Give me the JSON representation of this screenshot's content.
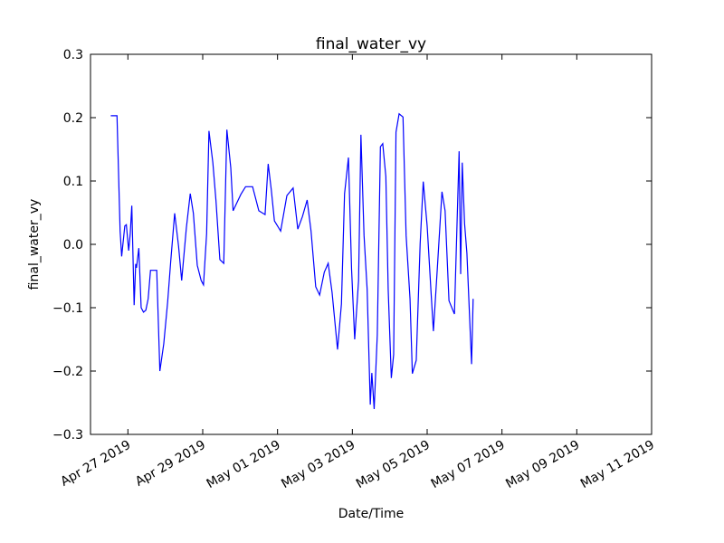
{
  "chart_data": {
    "type": "line",
    "title": "final_water_vy",
    "x_label": "Date/Time",
    "y_label": "final_water_vy",
    "color": "#0000ff",
    "x": [
      "2019-04-26T13:00",
      "2019-04-26T17:00",
      "2019-04-26T19:00",
      "2019-04-26T20:00",
      "2019-04-26T22:00",
      "2019-04-26T23:00",
      "2019-04-27T00:30",
      "2019-04-27T01:30",
      "2019-04-27T02:30",
      "2019-04-27T04:00",
      "2019-04-27T05:00",
      "2019-04-27T05:30",
      "2019-04-27T07:00",
      "2019-04-27T08:30",
      "2019-04-27T10:00",
      "2019-04-27T11:30",
      "2019-04-27T13:00",
      "2019-04-27T14:30",
      "2019-04-27T16:00",
      "2019-04-27T18:30",
      "2019-04-27T20:30",
      "2019-04-27T23:00",
      "2019-04-28T01:30",
      "2019-04-28T03:30",
      "2019-04-28T06:00",
      "2019-04-28T08:30",
      "2019-04-28T10:30",
      "2019-04-28T13:30",
      "2019-04-28T16:00",
      "2019-04-28T18:00",
      "2019-04-28T20:30",
      "2019-04-28T23:00",
      "2019-04-29T00:30",
      "2019-04-29T02:30",
      "2019-04-29T04:00",
      "2019-04-29T06:30",
      "2019-04-29T08:30",
      "2019-04-29T11:00",
      "2019-04-29T13:30",
      "2019-04-29T15:30",
      "2019-04-29T18:00",
      "2019-04-29T19:30",
      "2019-04-29T22:00",
      "2019-04-30T00:30",
      "2019-04-30T03:30",
      "2019-04-30T08:00",
      "2019-04-30T12:00",
      "2019-04-30T16:00",
      "2019-04-30T18:00",
      "2019-04-30T20:00",
      "2019-04-30T22:00",
      "2019-05-01T02:00",
      "2019-05-01T06:00",
      "2019-05-01T10:00",
      "2019-05-01T13:00",
      "2019-05-01T16:00",
      "2019-05-01T19:00",
      "2019-05-01T21:30",
      "2019-05-02T00:30",
      "2019-05-02T03:00",
      "2019-05-02T06:00",
      "2019-05-02T08:30",
      "2019-05-02T11:00",
      "2019-05-02T14:30",
      "2019-05-02T17:00",
      "2019-05-02T19:00",
      "2019-05-02T21:30",
      "2019-05-02T23:30",
      "2019-05-03T01:30",
      "2019-05-03T04:00",
      "2019-05-03T05:30",
      "2019-05-03T07:30",
      "2019-05-03T09:30",
      "2019-05-03T11:30",
      "2019-05-03T12:30",
      "2019-05-03T14:00",
      "2019-05-03T16:00",
      "2019-05-03T18:00",
      "2019-05-03T19:30",
      "2019-05-03T21:30",
      "2019-05-03T23:00",
      "2019-05-04T01:00",
      "2019-05-04T02:30",
      "2019-05-04T04:00",
      "2019-05-04T06:00",
      "2019-05-04T08:30",
      "2019-05-04T10:30",
      "2019-05-04T13:00",
      "2019-05-04T14:30",
      "2019-05-04T17:00",
      "2019-05-04T19:30",
      "2019-05-04T21:30",
      "2019-05-05T00:00",
      "2019-05-05T02:30",
      "2019-05-05T04:00",
      "2019-05-05T06:30",
      "2019-05-05T09:30",
      "2019-05-05T11:30",
      "2019-05-05T14:00",
      "2019-05-05T17:30",
      "2019-05-05T20:30",
      "2019-05-05T21:30",
      "2019-05-05T22:30",
      "2019-05-06T00:00",
      "2019-05-06T01:30",
      "2019-05-06T04:30",
      "2019-05-06T05:30"
    ],
    "values": [
      0.203,
      0.203,
      0.021,
      -0.019,
      0.029,
      0.031,
      -0.01,
      0.017,
      0.061,
      -0.096,
      -0.031,
      -0.037,
      -0.006,
      -0.1,
      -0.107,
      -0.104,
      -0.086,
      -0.041,
      -0.041,
      -0.041,
      -0.2,
      -0.157,
      -0.091,
      -0.026,
      0.049,
      -0.003,
      -0.057,
      0.026,
      0.08,
      0.049,
      -0.033,
      -0.057,
      -0.064,
      0.017,
      0.179,
      0.129,
      0.069,
      -0.024,
      -0.03,
      0.181,
      0.121,
      0.053,
      0.066,
      0.079,
      0.091,
      0.091,
      0.053,
      0.047,
      0.127,
      0.086,
      0.037,
      0.021,
      0.077,
      0.089,
      0.024,
      0.044,
      0.07,
      0.021,
      -0.067,
      -0.08,
      -0.044,
      -0.03,
      -0.076,
      -0.166,
      -0.094,
      0.08,
      0.137,
      -0.039,
      -0.15,
      -0.057,
      0.173,
      0.014,
      -0.071,
      -0.253,
      -0.203,
      -0.26,
      -0.143,
      0.154,
      0.159,
      0.107,
      -0.071,
      -0.211,
      -0.174,
      0.177,
      0.206,
      0.201,
      0.014,
      -0.086,
      -0.204,
      -0.183,
      0.001,
      0.099,
      0.029,
      -0.076,
      -0.137,
      -0.039,
      0.083,
      0.053,
      -0.089,
      -0.11,
      0.147,
      -0.047,
      0.129,
      0.033,
      -0.014,
      -0.189,
      -0.086
    ],
    "xlim": [
      "2019-04-26",
      "2019-05-11"
    ],
    "xticks": [
      {
        "value": "2019-04-27",
        "label": "Apr 27 2019"
      },
      {
        "value": "2019-04-29",
        "label": "Apr 29 2019"
      },
      {
        "value": "2019-05-01",
        "label": "May 01 2019"
      },
      {
        "value": "2019-05-03",
        "label": "May 03 2019"
      },
      {
        "value": "2019-05-05",
        "label": "May 05 2019"
      },
      {
        "value": "2019-05-07",
        "label": "May 07 2019"
      },
      {
        "value": "2019-05-09",
        "label": "May 09 2019"
      },
      {
        "value": "2019-05-11",
        "label": "May 11 2019"
      }
    ],
    "ylim": [
      -0.3,
      0.3
    ],
    "yticks": [
      {
        "value": -0.3,
        "label": "−0.3"
      },
      {
        "value": -0.2,
        "label": "−0.2"
      },
      {
        "value": -0.1,
        "label": "−0.1"
      },
      {
        "value": 0,
        "label": "0.0"
      },
      0.1,
      0.2,
      0.3
    ]
  }
}
